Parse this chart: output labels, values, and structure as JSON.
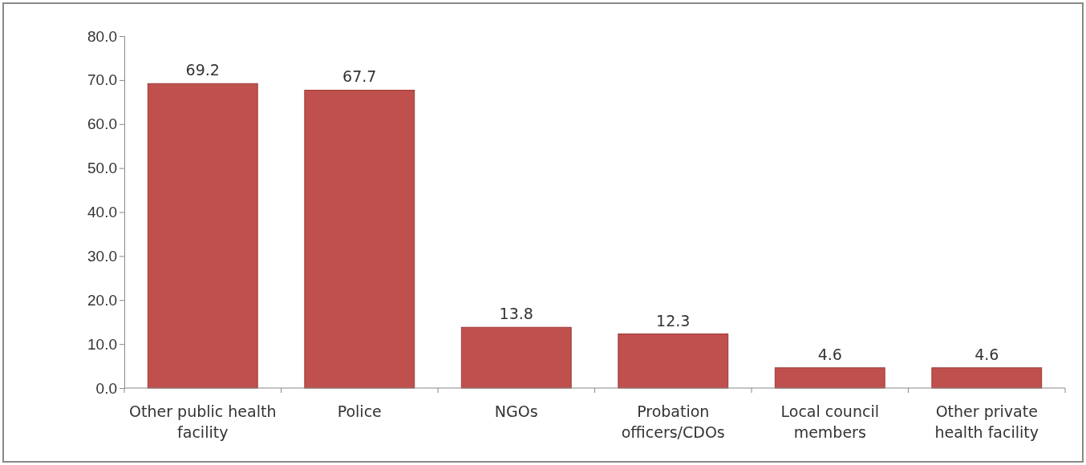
{
  "chart_data": {
    "type": "bar",
    "categories": [
      "Other public health facility",
      "Police",
      "NGOs",
      "Probation officers/CDOs",
      "Local council members",
      "Other private health facility"
    ],
    "values": [
      69.2,
      67.7,
      13.8,
      12.3,
      4.6,
      4.6
    ],
    "color": "#c0504d",
    "ylim": [
      0,
      80
    ],
    "yticks": [
      {
        "value": 0,
        "label": "0.0"
      },
      {
        "value": 10,
        "label": "10.0"
      },
      {
        "value": 20,
        "label": "20.0"
      },
      {
        "value": 30,
        "label": "30.0"
      },
      {
        "value": 40,
        "label": "40.0"
      },
      {
        "value": 50,
        "label": "50.0"
      },
      {
        "value": 60,
        "label": "60.0"
      },
      {
        "value": 70,
        "label": "70.0"
      },
      {
        "value": 80,
        "label": "80.0"
      }
    ],
    "data_labels": true,
    "grid": false
  }
}
